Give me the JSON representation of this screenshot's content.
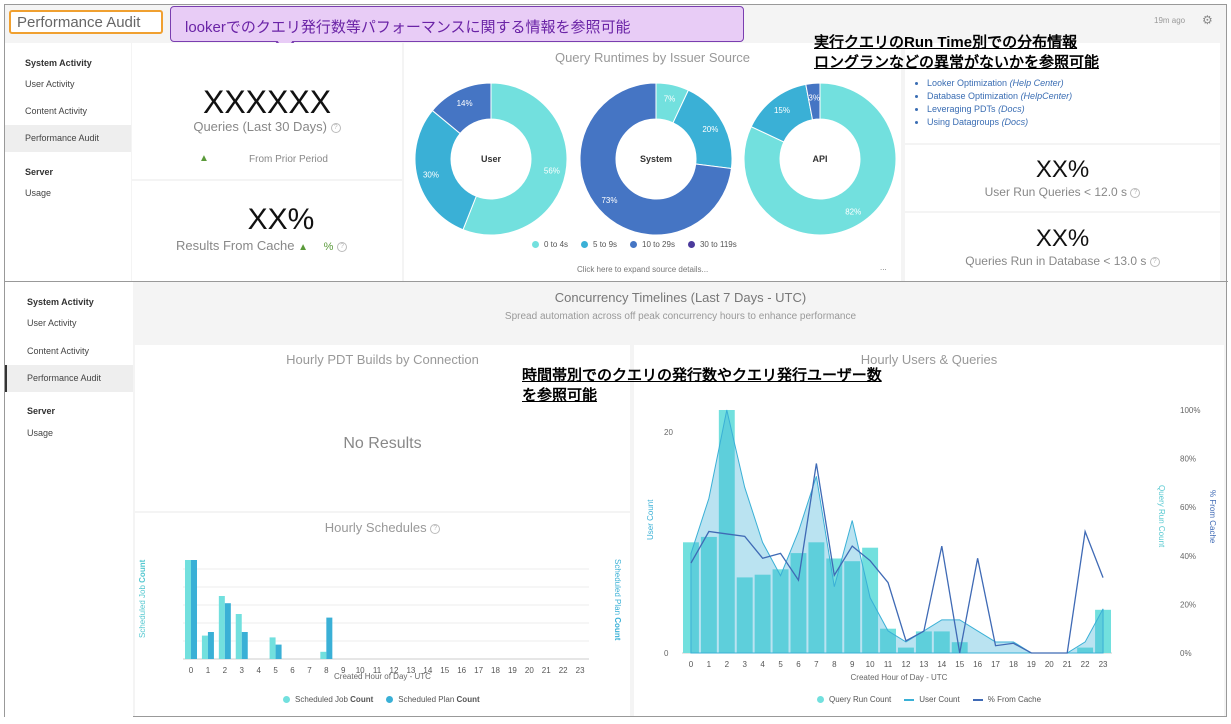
{
  "header": {
    "page_title": "Performance Audit",
    "time_ago": "19m ago",
    "callout": "lookerでのクエリ発行数等パフォーマンスに関する情報を参照可能"
  },
  "sidebar1": {
    "section1": "System Activity",
    "items": [
      "User Activity",
      "Content Activity",
      "Performance Audit"
    ],
    "section2": "Server",
    "usage": "Usage"
  },
  "sidebar2": {
    "section1": "System Activity",
    "items": [
      "User Activity",
      "Content Activity",
      "Performance Audit"
    ],
    "section2": "Server",
    "usage": "Usage"
  },
  "tiles": {
    "queries_value": "XXXXXX",
    "queries_label": "Queries (Last 30 Days)",
    "prior_arrow": "▲",
    "prior_label": "From Prior Period",
    "cache_value": "XX%",
    "cache_label": "Results From Cache",
    "cache_arrow": "▲",
    "cache_pct": "%",
    "user_run_value": "XX%",
    "user_run_label": "User Run Queries",
    "user_run_cmp": "< 12.0 s",
    "db_value": "XX%",
    "db_label": "Queries Run in Database",
    "db_cmp": "< 13.0 s"
  },
  "runtimes": {
    "title": "Query Runtimes by Issuer Source",
    "donuts": [
      {
        "label": "User",
        "slices": [
          56,
          30,
          14,
          0
        ]
      },
      {
        "label": "System",
        "slices": [
          7,
          20,
          73,
          0
        ]
      },
      {
        "label": "API",
        "slices": [
          82,
          15,
          3,
          0
        ]
      }
    ],
    "slice_labels": [
      [
        "56%",
        "30%",
        "14%"
      ],
      [
        "7%",
        "20%",
        "73%"
      ],
      [
        "82%",
        "15%",
        "3%"
      ]
    ],
    "legend": [
      "0 to 4s",
      "5 to 9s",
      "10 to 29s",
      "30 to 119s"
    ],
    "colors": [
      "#72e0de",
      "#3ab0d6",
      "#4575c4",
      "#4b3a9c"
    ],
    "footer": "Click here to expand source details...",
    "more": "..."
  },
  "links": [
    {
      "text": "Looker Optimization",
      "src": "(Help Center)"
    },
    {
      "text": "Database Optimization",
      "src": "(HelpCenter)"
    },
    {
      "text": "Leveraging PDTs",
      "src": "(Docs)"
    },
    {
      "text": "Using Datagroups",
      "src": "(Docs)"
    }
  ],
  "annotations": {
    "a1_line1": "実行クエリのRun Time別での分布情報",
    "a1_line2": "ロングランなどの異常がないかを参照可能",
    "a2_line1": "時間帯別でのクエリの発行数やクエリ発行ユーザー数",
    "a2_line2": "を参照可能"
  },
  "concurrency": {
    "title": "Concurrency Timelines (Last 7 Days - UTC)",
    "subtitle": "Spread automation across off peak concurrency hours to enhance performance"
  },
  "pdt": {
    "title": "Hourly PDT Builds by Connection",
    "empty": "No Results"
  },
  "schedules": {
    "title": "Hourly Schedules",
    "ylabel_left_a": "Scheduled Job ",
    "ylabel_left_b": "Count",
    "ylabel_right_a": "Scheduled Plan ",
    "ylabel_right_b": "Count",
    "xlabel": "Created Hour of Day - UTC",
    "legend_a": "Scheduled Job ",
    "legend_b": "Scheduled Plan ",
    "legend_count": "Count"
  },
  "users_queries": {
    "title": "Hourly Users & Queries",
    "ylabel_left": "User Count",
    "ylabel_right1": "Query Run Count",
    "ylabel_right2": "% From Cache",
    "xlabel": "Created Hour of Day - UTC",
    "legend": [
      "Query Run Count",
      "User Count",
      "% From Cache"
    ],
    "yticks_left": [
      "20",
      "0"
    ],
    "yticks_right": [
      "100%",
      "80%",
      "60%",
      "40%",
      "20%",
      "0%"
    ]
  },
  "chart_data": [
    {
      "type": "bar",
      "title": "Hourly Schedules",
      "categories": [
        "0",
        "1",
        "2",
        "3",
        "4",
        "5",
        "6",
        "7",
        "8",
        "9",
        "10",
        "11",
        "12",
        "13",
        "14",
        "15",
        "16",
        "17",
        "18",
        "19",
        "20",
        "21",
        "22",
        "23"
      ],
      "series": [
        {
          "name": "Scheduled Job Count",
          "values": [
            5.5,
            1.3,
            3.5,
            2.5,
            0,
            1.2,
            0,
            0,
            0.4,
            0,
            0,
            0,
            0,
            0,
            0,
            0,
            0,
            0,
            0,
            0,
            0,
            0,
            0,
            0
          ]
        },
        {
          "name": "Scheduled Plan Count",
          "values": [
            5.5,
            1.5,
            3.1,
            1.5,
            0,
            0.8,
            0,
            0,
            2.3,
            0,
            0,
            0,
            0,
            0,
            0,
            0,
            0,
            0,
            0,
            0,
            0,
            0,
            0,
            0
          ]
        }
      ],
      "colors": [
        "#72e0de",
        "#3ab0d6"
      ]
    },
    {
      "type": "bar",
      "title": "Hourly Users & Queries",
      "categories": [
        "0",
        "1",
        "2",
        "3",
        "4",
        "5",
        "6",
        "7",
        "8",
        "9",
        "10",
        "11",
        "12",
        "13",
        "14",
        "15",
        "16",
        "17",
        "18",
        "19",
        "20",
        "21",
        "22",
        "23"
      ],
      "series": [
        {
          "name": "Query Run Count",
          "values": [
            41,
            43,
            90,
            28,
            29,
            31,
            37,
            41,
            35,
            34,
            39,
            9,
            2,
            8,
            8,
            4,
            0,
            0,
            0,
            0,
            0,
            0,
            2,
            16
          ]
        },
        {
          "name": "User Count",
          "values": [
            9,
            14,
            22,
            15,
            10,
            7,
            11,
            16,
            6,
            12,
            5,
            2,
            1,
            2,
            3,
            3,
            2,
            1,
            1,
            0,
            0,
            0,
            1,
            4
          ]
        },
        {
          "name": "% From Cache",
          "values": [
            37,
            50,
            49,
            48,
            39,
            41,
            30,
            78,
            32,
            44,
            38,
            29,
            5,
            9,
            44,
            0,
            39,
            3,
            4,
            0,
            0,
            0,
            50,
            31
          ]
        }
      ],
      "ylim_left": [
        0,
        22
      ],
      "ylim_right": [
        0,
        100
      ],
      "colors": [
        "#72e0de",
        "#3ab0d6",
        "#3f6ab5"
      ]
    }
  ]
}
